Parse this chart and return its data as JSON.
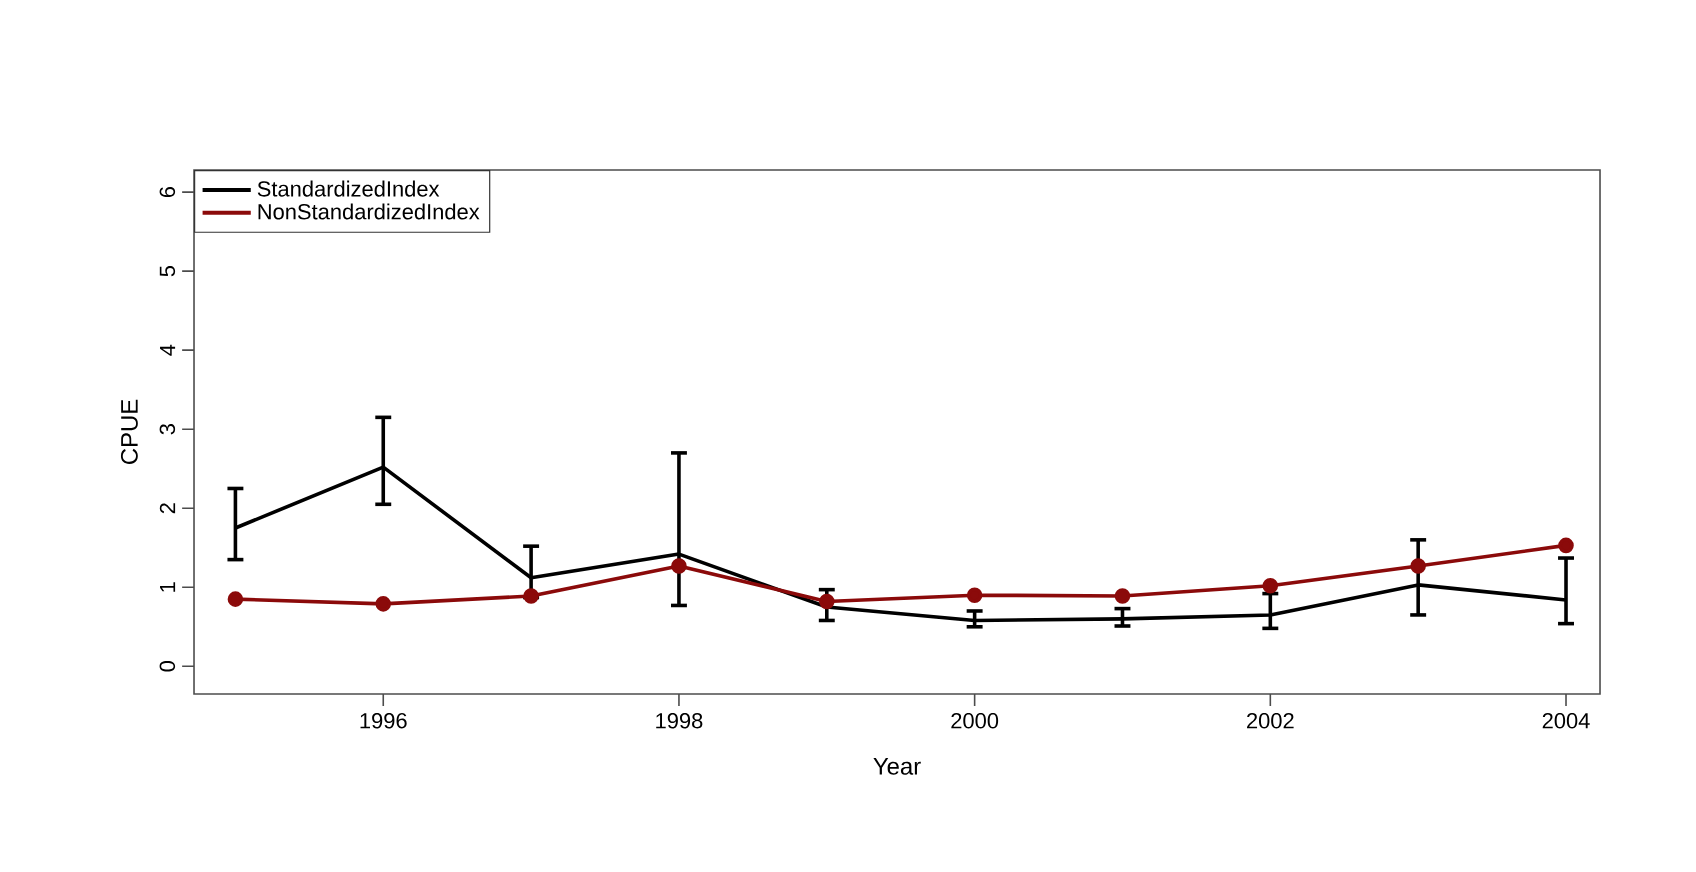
{
  "chart_data": {
    "type": "line",
    "xlabel": "Year",
    "ylabel": "CPUE",
    "x": [
      1995,
      1996,
      1997,
      1998,
      1999,
      2000,
      2001,
      2002,
      2003,
      2004
    ],
    "series": [
      {
        "name": "StandardizedIndex",
        "color": "#000000",
        "marker": "none",
        "values": [
          1.75,
          2.52,
          1.12,
          1.42,
          0.75,
          0.58,
          0.6,
          0.65,
          1.03,
          0.84
        ],
        "errors": [
          [
            1.35,
            2.25
          ],
          [
            2.05,
            3.15
          ],
          [
            0.87,
            1.52
          ],
          [
            0.77,
            2.7
          ],
          [
            0.58,
            0.97
          ],
          [
            0.5,
            0.7
          ],
          [
            0.51,
            0.73
          ],
          [
            0.48,
            0.92
          ],
          [
            0.65,
            1.6
          ],
          [
            0.54,
            1.37
          ]
        ]
      },
      {
        "name": "NonStandardizedIndex",
        "color": "#8b0a0a",
        "marker": "circle",
        "values": [
          0.85,
          0.79,
          0.89,
          1.27,
          0.82,
          0.9,
          0.89,
          1.02,
          1.27,
          1.53
        ]
      }
    ],
    "xlim": [
      1994.72,
      2004.23
    ],
    "ylim": [
      -0.35,
      6.28
    ],
    "xticks": [
      1996,
      1998,
      2000,
      2002,
      2004
    ],
    "yticks": [
      0,
      1,
      2,
      3,
      4,
      5,
      6
    ],
    "legend": "top left",
    "grid": false
  }
}
